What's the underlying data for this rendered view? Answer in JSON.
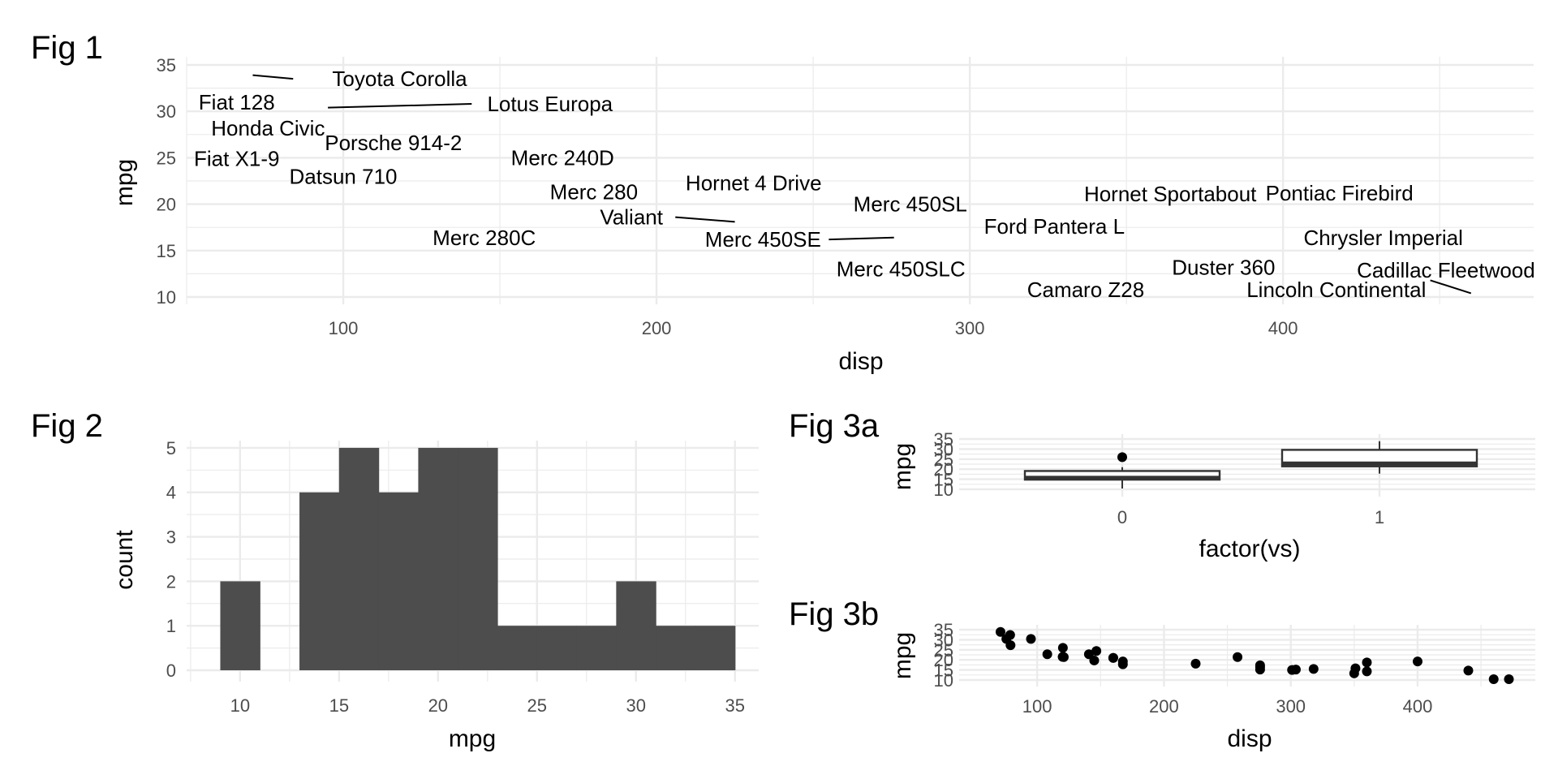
{
  "chart_data": [
    {
      "id": "fig1",
      "tag": "Fig 1",
      "type": "scatter",
      "xlabel": "disp",
      "ylabel": "mpg",
      "xlim": [
        50,
        480
      ],
      "ylim": [
        10,
        35
      ],
      "xticks": [
        100,
        200,
        300,
        400
      ],
      "yticks": [
        10,
        15,
        20,
        25,
        30,
        35
      ],
      "point_markers": false,
      "labels": [
        {
          "text": "Toyota Corolla",
          "x": 118,
          "y": 33.5
        },
        {
          "text": "Fiat 128",
          "x": 66,
          "y": 31.0
        },
        {
          "text": "Lotus Europa",
          "x": 166,
          "y": 30.8
        },
        {
          "text": "Honda Civic",
          "x": 76,
          "y": 28.2
        },
        {
          "text": "Porsche 914-2",
          "x": 116,
          "y": 26.6
        },
        {
          "text": "Merc 240D",
          "x": 170,
          "y": 25.0
        },
        {
          "text": "Fiat X1-9",
          "x": 66,
          "y": 24.9
        },
        {
          "text": "Datsun 710",
          "x": 100,
          "y": 23.0
        },
        {
          "text": "Hornet 4 Drive",
          "x": 231,
          "y": 22.3
        },
        {
          "text": "Merc 280",
          "x": 180,
          "y": 21.3
        },
        {
          "text": "Hornet Sportabout",
          "x": 364,
          "y": 21.1
        },
        {
          "text": "Pontiac Firebird",
          "x": 418,
          "y": 21.2
        },
        {
          "text": "Merc 450SL",
          "x": 281,
          "y": 20.0
        },
        {
          "text": "Valiant",
          "x": 192,
          "y": 18.6
        },
        {
          "text": "Ford Pantera L",
          "x": 327,
          "y": 17.6
        },
        {
          "text": "Merc 280C",
          "x": 145,
          "y": 16.4
        },
        {
          "text": "Merc 450SE",
          "x": 234,
          "y": 16.2
        },
        {
          "text": "Chrysler Imperial",
          "x": 432,
          "y": 16.4
        },
        {
          "text": "Merc 450SLC",
          "x": 278,
          "y": 13.0
        },
        {
          "text": "Duster 360",
          "x": 381,
          "y": 13.2
        },
        {
          "text": "Cadillac Fleetwood",
          "x": 452,
          "y": 12.9
        },
        {
          "text": "Camaro Z28",
          "x": 337,
          "y": 10.8
        },
        {
          "text": "Lincoln Continental",
          "x": 417,
          "y": 10.8
        }
      ],
      "leader_lines": [
        {
          "from": [
            71.1,
            33.9
          ],
          "to": [
            84,
            33.5
          ]
        },
        {
          "from": [
            95.1,
            30.4
          ],
          "to": [
            141,
            30.8
          ]
        },
        {
          "from": [
            225,
            18.1
          ],
          "to": [
            206,
            18.6
          ]
        },
        {
          "from": [
            275.8,
            16.4
          ],
          "to": [
            255,
            16.2
          ]
        },
        {
          "from": [
            460,
            10.4
          ],
          "to": [
            447,
            11.8
          ]
        }
      ]
    },
    {
      "id": "fig2",
      "tag": "Fig 2",
      "type": "bar",
      "subtype": "histogram",
      "xlabel": "mpg",
      "ylabel": "count",
      "xlim": [
        7.3,
        36.2
      ],
      "ylim": [
        0,
        5.4
      ],
      "xticks": [
        10,
        15,
        20,
        25,
        30,
        35
      ],
      "yticks": [
        0,
        1,
        2,
        3,
        4,
        5
      ],
      "bin_width": 2,
      "bin_edges": [
        9,
        11,
        13,
        15,
        17,
        19,
        21,
        23,
        25,
        27,
        29,
        31,
        33,
        35
      ],
      "counts": [
        2,
        0,
        4,
        5,
        4,
        5,
        5,
        1,
        1,
        1,
        2,
        1,
        1
      ],
      "fill": "#4d4d4d"
    },
    {
      "id": "fig3a",
      "tag": "Fig 3a",
      "type": "box",
      "xlabel": "factor(vs)",
      "ylabel": "mpg",
      "categories": [
        "0",
        "1"
      ],
      "ylim": [
        10,
        35
      ],
      "yticks": [
        10,
        15,
        20,
        25,
        30,
        35
      ],
      "boxes": [
        {
          "category": "0",
          "min": 10.4,
          "q1": 14.8,
          "median": 15.7,
          "q3": 19.1,
          "max": 21.0,
          "outliers": [
            26.0
          ]
        },
        {
          "category": "1",
          "min": 17.8,
          "q1": 21.4,
          "median": 22.8,
          "q3": 29.6,
          "max": 33.9,
          "outliers": []
        }
      ]
    },
    {
      "id": "fig3b",
      "tag": "Fig 3b",
      "type": "scatter",
      "xlabel": "disp",
      "ylabel": "mpg",
      "xlim": [
        50,
        480
      ],
      "ylim": [
        10,
        35
      ],
      "xticks": [
        100,
        200,
        300,
        400
      ],
      "yticks": [
        10,
        15,
        20,
        25,
        30,
        35
      ],
      "points": [
        {
          "x": 160,
          "y": 21.0
        },
        {
          "x": 160,
          "y": 21.0
        },
        {
          "x": 108,
          "y": 22.8
        },
        {
          "x": 258,
          "y": 21.4
        },
        {
          "x": 360,
          "y": 18.7
        },
        {
          "x": 225,
          "y": 18.1
        },
        {
          "x": 360,
          "y": 14.3
        },
        {
          "x": 146.7,
          "y": 24.4
        },
        {
          "x": 140.8,
          "y": 22.8
        },
        {
          "x": 167.6,
          "y": 19.2
        },
        {
          "x": 167.6,
          "y": 17.8
        },
        {
          "x": 275.8,
          "y": 16.4
        },
        {
          "x": 275.8,
          "y": 17.3
        },
        {
          "x": 275.8,
          "y": 15.2
        },
        {
          "x": 472,
          "y": 10.4
        },
        {
          "x": 460,
          "y": 10.4
        },
        {
          "x": 440,
          "y": 14.7
        },
        {
          "x": 78.7,
          "y": 32.4
        },
        {
          "x": 75.7,
          "y": 30.4
        },
        {
          "x": 71.1,
          "y": 33.9
        },
        {
          "x": 120.1,
          "y": 21.5
        },
        {
          "x": 318,
          "y": 15.5
        },
        {
          "x": 304,
          "y": 15.2
        },
        {
          "x": 350,
          "y": 13.3
        },
        {
          "x": 400,
          "y": 19.2
        },
        {
          "x": 79,
          "y": 27.3
        },
        {
          "x": 120.3,
          "y": 26.0
        },
        {
          "x": 95.1,
          "y": 30.4
        },
        {
          "x": 351,
          "y": 15.8
        },
        {
          "x": 145,
          "y": 19.7
        },
        {
          "x": 301,
          "y": 15.0
        },
        {
          "x": 121,
          "y": 21.4
        }
      ]
    }
  ]
}
